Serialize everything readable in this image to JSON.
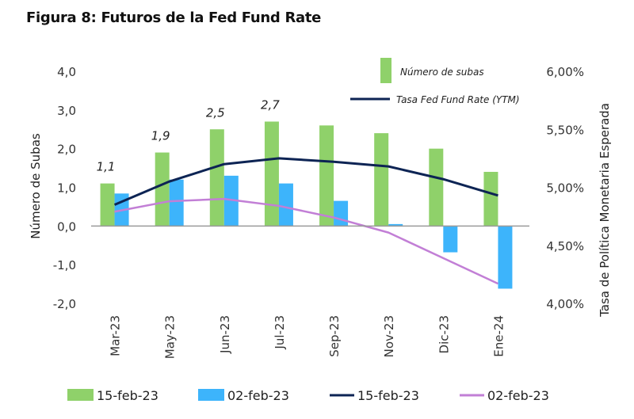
{
  "title": "Figura 8: Futuros de la Fed Fund Rate",
  "chart_data": {
    "type": "bar",
    "title": "Figura 8: Futuros de la Fed Fund Rate",
    "categories": [
      "Mar-23",
      "May-23",
      "Jun-23",
      "Jul-23",
      "Sep-23",
      "Nov-23",
      "Dic-23",
      "Ene-24"
    ],
    "ylabel": "Número de Subas",
    "y2label": "Tasa de Política Monetaria Esperada",
    "ylim": [
      -2.0,
      4.0
    ],
    "y2lim": [
      4.0,
      6.0
    ],
    "yticks": [
      "4,0",
      "3,0",
      "2,0",
      "1,0",
      "0,0",
      "-1,0",
      "-2,0"
    ],
    "y2ticks": [
      "6,00%",
      "5,50%",
      "5,00%",
      "4,50%",
      "4,00%"
    ],
    "grid": false,
    "series": [
      {
        "name": "15-feb-23",
        "type": "bar",
        "axis": "left",
        "color": "#8fd16a",
        "values": [
          1.1,
          1.9,
          2.5,
          2.7,
          2.6,
          2.4,
          2.0,
          1.4
        ]
      },
      {
        "name": "02-feb-23",
        "type": "bar",
        "axis": "left",
        "color": "#3db4fb",
        "values": [
          0.84,
          1.2,
          1.3,
          1.1,
          0.65,
          0.05,
          -0.68,
          -1.62
        ]
      },
      {
        "name": "15-feb-23",
        "type": "line",
        "axis": "right",
        "color": "#0d2454",
        "values": [
          4.85,
          5.05,
          5.2,
          5.25,
          5.22,
          5.18,
          5.07,
          4.93
        ]
      },
      {
        "name": "02-feb-23",
        "type": "line",
        "axis": "right",
        "color": "#c27fd6",
        "values": [
          4.79,
          4.88,
          4.9,
          4.84,
          4.74,
          4.61,
          4.39,
          4.17
        ]
      }
    ],
    "data_labels": [
      {
        "category": "Mar-23",
        "text": "1,1"
      },
      {
        "category": "May-23",
        "text": "1,9"
      },
      {
        "category": "Jun-23",
        "text": "2,5"
      },
      {
        "category": "Jul-23",
        "text": "2,7"
      }
    ],
    "inner_legend": [
      {
        "type": "bar",
        "color": "#8fd16a",
        "label": "Número de subas"
      },
      {
        "type": "line",
        "color": "#0d2454",
        "label": "Tasa Fed Fund Rate (YTM)"
      }
    ],
    "legend": "bottom",
    "legend_entries": [
      {
        "type": "bar",
        "color": "#8fd16a",
        "label": "15-feb-23"
      },
      {
        "type": "bar",
        "color": "#3db4fb",
        "label": "02-feb-23"
      },
      {
        "type": "line",
        "color": "#0d2454",
        "label": "15-feb-23"
      },
      {
        "type": "line",
        "color": "#c27fd6",
        "label": "02-feb-23"
      }
    ]
  }
}
